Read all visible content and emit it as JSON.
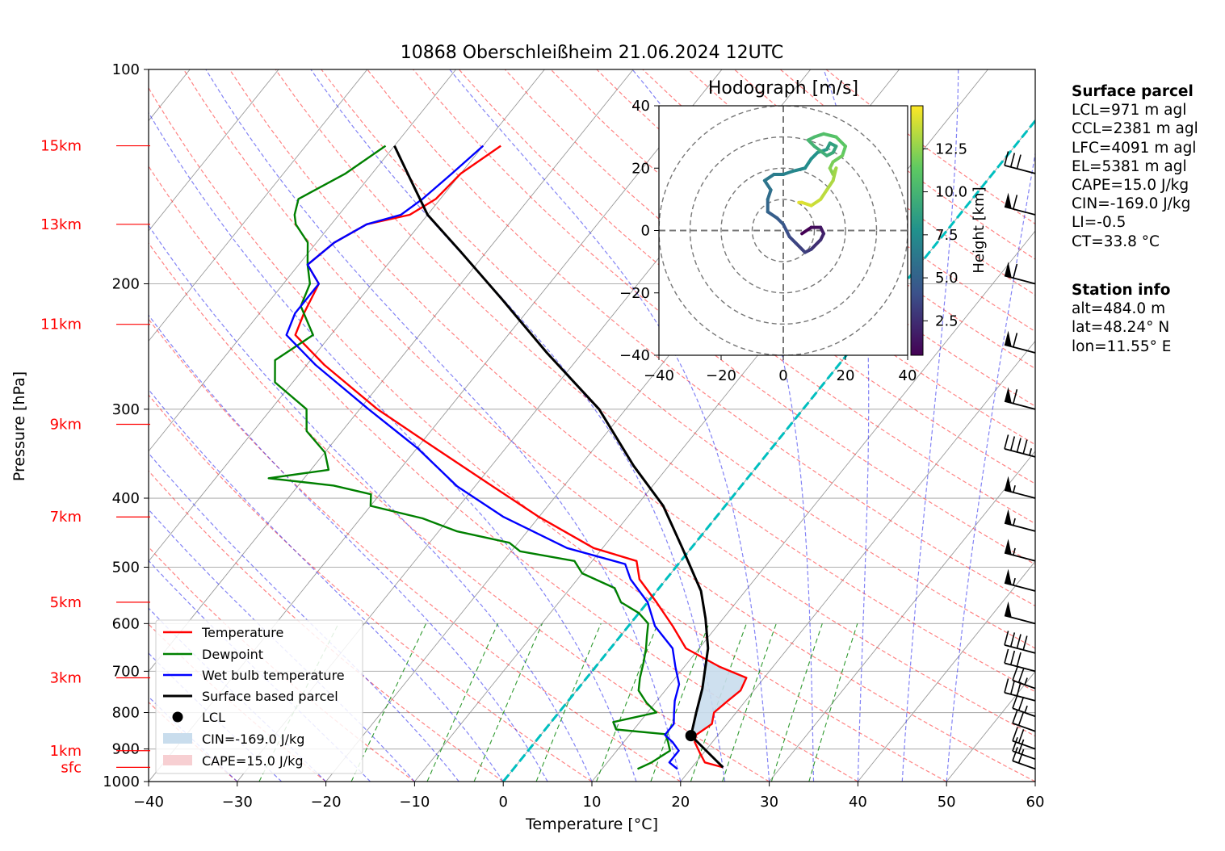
{
  "chart_data": {
    "type": "line",
    "title": "10868 Oberschleißheim 21.06.2024 12UTC",
    "xlabel": "Temperature [°C]",
    "ylabel": "Pressure [hPa]",
    "xlim": [
      -40,
      60
    ],
    "ylim": [
      1000,
      100
    ],
    "y_scale": "log",
    "xticks": [
      "−40",
      "−30",
      "−20",
      "−10",
      "0",
      "10",
      "20",
      "30",
      "40",
      "50",
      "60"
    ],
    "yticks": [
      "100",
      "200",
      "300",
      "400",
      "500",
      "600",
      "700",
      "800",
      "900",
      "1000"
    ],
    "grid": true,
    "height_labels": [
      {
        "label": "15km",
        "p": 128
      },
      {
        "label": "13km",
        "p": 165
      },
      {
        "label": "11km",
        "p": 228
      },
      {
        "label": "9km",
        "p": 315
      },
      {
        "label": "7km",
        "p": 425
      },
      {
        "label": "5km",
        "p": 560
      },
      {
        "label": "3km",
        "p": 715
      },
      {
        "label": "1km",
        "p": 905
      },
      {
        "label": "sfc",
        "p": 955
      }
    ],
    "series": [
      {
        "name": "Temperature",
        "color": "#ff0000",
        "points": [
          [
            -58,
            128
          ],
          [
            -60,
            140
          ],
          [
            -60.5,
            152
          ],
          [
            -62,
            160
          ],
          [
            -66,
            165
          ],
          [
            -68,
            175
          ],
          [
            -69,
            188
          ],
          [
            -66,
            200
          ],
          [
            -65,
            220
          ],
          [
            -64,
            236
          ],
          [
            -58,
            260
          ],
          [
            -48,
            300
          ],
          [
            -38,
            340
          ],
          [
            -28,
            385
          ],
          [
            -20,
            425
          ],
          [
            -11,
            470
          ],
          [
            -5,
            490
          ],
          [
            -3,
            520
          ],
          [
            1,
            560
          ],
          [
            5,
            605
          ],
          [
            8.5,
            650
          ],
          [
            14,
            690
          ],
          [
            18,
            715
          ],
          [
            18.5,
            745
          ],
          [
            18,
            770
          ],
          [
            17.5,
            800
          ],
          [
            18.3,
            830
          ],
          [
            17.5,
            860
          ],
          [
            18,
            880
          ],
          [
            19.5,
            910
          ],
          [
            21,
            940
          ],
          [
            23.5,
            955
          ]
        ]
      },
      {
        "name": "Dewpoint",
        "color": "#008000",
        "points": [
          [
            -71,
            128
          ],
          [
            -73,
            140
          ],
          [
            -76,
            152
          ],
          [
            -75,
            160
          ],
          [
            -74,
            165
          ],
          [
            -71,
            175
          ],
          [
            -69,
            188
          ],
          [
            -67,
            200
          ],
          [
            -66,
            215
          ],
          [
            -62,
            236
          ],
          [
            -64,
            256
          ],
          [
            -62,
            275
          ],
          [
            -56,
            300
          ],
          [
            -54,
            322
          ],
          [
            -50,
            345
          ],
          [
            -48,
            365
          ],
          [
            -54,
            375
          ],
          [
            -46,
            384
          ],
          [
            -41,
            395
          ],
          [
            -40,
            410
          ],
          [
            -33,
            427
          ],
          [
            -28,
            445
          ],
          [
            -21,
            462
          ],
          [
            -19,
            475
          ],
          [
            -12,
            490
          ],
          [
            -10,
            510
          ],
          [
            -5,
            535
          ],
          [
            -3,
            560
          ],
          [
            0,
            580
          ],
          [
            2,
            600
          ],
          [
            3,
            625
          ],
          [
            4,
            650
          ],
          [
            5,
            680
          ],
          [
            6,
            715
          ],
          [
            7,
            745
          ],
          [
            9,
            775
          ],
          [
            11,
            800
          ],
          [
            7,
            825
          ],
          [
            8,
            845
          ],
          [
            14,
            858
          ],
          [
            15,
            880
          ],
          [
            16,
            905
          ],
          [
            15,
            940
          ],
          [
            14,
            960
          ]
        ]
      },
      {
        "name": "Wet bulb temperature",
        "color": "#0000ff",
        "points": [
          [
            -60,
            128
          ],
          [
            -61,
            140
          ],
          [
            -62,
            152
          ],
          [
            -63,
            160
          ],
          [
            -66,
            165
          ],
          [
            -68,
            175
          ],
          [
            -69,
            188
          ],
          [
            -66,
            200
          ],
          [
            -66,
            220
          ],
          [
            -65,
            236
          ],
          [
            -59,
            260
          ],
          [
            -49,
            300
          ],
          [
            -40,
            340
          ],
          [
            -32,
            385
          ],
          [
            -24,
            425
          ],
          [
            -14,
            470
          ],
          [
            -6,
            495
          ],
          [
            -4,
            520
          ],
          [
            0,
            560
          ],
          [
            3,
            605
          ],
          [
            7,
            650
          ],
          [
            9,
            690
          ],
          [
            11,
            730
          ],
          [
            12,
            770
          ],
          [
            13,
            800
          ],
          [
            14,
            830
          ],
          [
            14,
            860
          ],
          [
            15.5,
            880
          ],
          [
            17,
            905
          ],
          [
            17,
            940
          ],
          [
            18.5,
            960
          ]
        ]
      },
      {
        "name": "Surface based parcel",
        "color": "#000000",
        "points": [
          [
            23.5,
            955
          ],
          [
            17,
            862
          ],
          [
            15.5,
            800
          ],
          [
            14,
            740
          ],
          [
            11,
            650
          ],
          [
            8,
            590
          ],
          [
            5,
            540
          ],
          [
            -1,
            470
          ],
          [
            -7,
            410
          ],
          [
            -14,
            360
          ],
          [
            -23,
            300
          ],
          [
            -34,
            250
          ],
          [
            -44,
            210
          ],
          [
            -53,
            180
          ],
          [
            -60,
            160
          ],
          [
            -66,
            140
          ],
          [
            -70,
            128
          ]
        ]
      }
    ],
    "lcl": {
      "label": "LCL",
      "t": 17,
      "p": 862
    },
    "cin_label": "CIN=-169.0 J/kg",
    "cape_label": "CAPE=15.0 J/kg",
    "cin_color": "#c9dded",
    "cape_color": "#f7cfd2",
    "isotherm_0": {
      "color": "#00bfbf"
    },
    "wind_barbs": [
      {
        "p": 960,
        "speed_kt": 20
      },
      {
        "p": 930,
        "speed_kt": 20
      },
      {
        "p": 900,
        "speed_kt": 20
      },
      {
        "p": 850,
        "speed_kt": 20
      },
      {
        "p": 810,
        "speed_kt": 25
      },
      {
        "p": 770,
        "speed_kt": 30
      },
      {
        "p": 740,
        "speed_kt": 25
      },
      {
        "p": 700,
        "speed_kt": 30
      },
      {
        "p": 660,
        "speed_kt": 40
      },
      {
        "p": 600,
        "speed_kt": 50
      },
      {
        "p": 540,
        "speed_kt": 55
      },
      {
        "p": 490,
        "speed_kt": 55
      },
      {
        "p": 445,
        "speed_kt": 55
      },
      {
        "p": 400,
        "speed_kt": 55
      },
      {
        "p": 350,
        "speed_kt": 45
      },
      {
        "p": 300,
        "speed_kt": 60
      },
      {
        "p": 250,
        "speed_kt": 60
      },
      {
        "p": 200,
        "speed_kt": 60
      },
      {
        "p": 160,
        "speed_kt": 60
      },
      {
        "p": 140,
        "speed_kt": 30
      }
    ],
    "hodograph": {
      "title": "Hodograph [m/s]",
      "xlim": [
        -40,
        40
      ],
      "ylim": [
        -40,
        40
      ],
      "xticks": [
        "−40",
        "−20",
        "0",
        "20",
        "40"
      ],
      "yticks": [
        "40",
        "20",
        "0",
        "−20",
        "−40"
      ],
      "rings": [
        10,
        20,
        30,
        40
      ],
      "colorbar_label": "Height [km]",
      "colorbar_ticks": [
        "12.5",
        "10.0",
        "7.5",
        "5.0",
        "2.5"
      ],
      "colorbar_values": [
        12.5,
        10.0,
        7.5,
        5.0,
        2.5
      ],
      "height_range": [
        0.5,
        15
      ],
      "points": [
        [
          6,
          -1,
          0.5
        ],
        [
          9,
          1,
          1
        ],
        [
          12,
          1,
          1.5
        ],
        [
          13,
          -1,
          2
        ],
        [
          12,
          -3,
          2.5
        ],
        [
          9,
          -6,
          3
        ],
        [
          7,
          -7,
          3.3
        ],
        [
          4,
          -4,
          3.6
        ],
        [
          2,
          -2,
          3.9
        ],
        [
          1,
          0,
          4.2
        ],
        [
          0,
          2,
          4.5
        ],
        [
          -2,
          4,
          4.8
        ],
        [
          -5,
          6,
          5.2
        ],
        [
          -5,
          10,
          5.6
        ],
        [
          -4,
          13,
          6
        ],
        [
          -6,
          16,
          6.3
        ],
        [
          -3,
          18,
          6.6
        ],
        [
          0,
          18,
          6.9
        ],
        [
          3,
          19,
          7.2
        ],
        [
          7,
          20,
          7.5
        ],
        [
          9,
          23,
          7.8
        ],
        [
          11,
          25,
          8.1
        ],
        [
          14,
          26,
          8.4
        ],
        [
          15,
          28,
          8.7
        ],
        [
          17,
          27,
          9
        ],
        [
          16,
          25,
          9.3
        ],
        [
          14,
          24,
          9.6
        ],
        [
          10,
          27,
          9.9
        ],
        [
          8,
          29,
          10.2
        ],
        [
          10,
          30,
          10.5
        ],
        [
          13,
          31,
          10.8
        ],
        [
          17,
          30,
          11.1
        ],
        [
          20,
          27,
          11.4
        ],
        [
          19,
          24,
          11.7
        ],
        [
          16,
          22,
          12
        ],
        [
          15,
          20,
          12.3
        ],
        [
          16,
          18,
          12.6
        ],
        [
          17,
          20,
          12.9
        ],
        [
          16,
          16,
          13.2
        ],
        [
          14,
          13,
          13.5
        ],
        [
          12,
          10,
          13.8
        ],
        [
          9,
          8,
          14.1
        ],
        [
          6,
          9,
          14.4
        ],
        [
          5,
          9,
          14.7
        ]
      ]
    }
  },
  "legend": {
    "temperature": "Temperature",
    "dewpoint": "Dewpoint",
    "wetbulb": "Wet bulb temperature",
    "parcel": "Surface based parcel",
    "lcl": "LCL",
    "cin": "CIN=-169.0 J/kg",
    "cape": "CAPE=15.0 J/kg"
  },
  "surface_parcel": {
    "heading": "Surface parcel",
    "lines": [
      "LCL=971 m agl",
      "CCL=2381 m agl",
      "LFC=4091 m agl",
      "EL=5381 m agl",
      "CAPE=15.0 J/kg",
      "CIN=-169.0 J/kg",
      "LI=-0.5",
      "CT=33.8 °C"
    ]
  },
  "station_info": {
    "heading": "Station info",
    "lines": [
      "alt=484.0 m",
      "lat=48.24° N",
      "lon=11.55° E"
    ]
  }
}
